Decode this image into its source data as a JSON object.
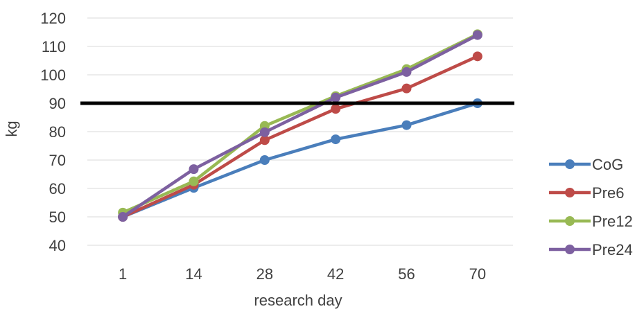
{
  "chart_data": {
    "type": "line",
    "title": "",
    "xlabel": "research day",
    "ylabel": "kg",
    "categories": [
      "1",
      "14",
      "28",
      "42",
      "56",
      "70"
    ],
    "ylim": [
      40,
      120
    ],
    "yticks": [
      40,
      50,
      60,
      70,
      80,
      90,
      100,
      110,
      120
    ],
    "grid": "horizontal",
    "legend": "right",
    "reference_line": {
      "y": 90,
      "color": "#000000"
    },
    "series": [
      {
        "name": "CoG",
        "color": "#4a7ebb",
        "values": [
          50,
          60.2,
          70,
          77.3,
          82.3,
          90
        ]
      },
      {
        "name": "Pre6",
        "color": "#be4b48",
        "values": [
          50,
          61.3,
          77,
          88,
          95.2,
          106.5
        ]
      },
      {
        "name": "Pre12",
        "color": "#98b954",
        "values": [
          51.5,
          62.5,
          82,
          92.5,
          102,
          114.3
        ]
      },
      {
        "name": "Pre24",
        "color": "#7d60a0",
        "values": [
          50,
          66.8,
          79.8,
          92,
          101,
          114
        ]
      }
    ]
  }
}
